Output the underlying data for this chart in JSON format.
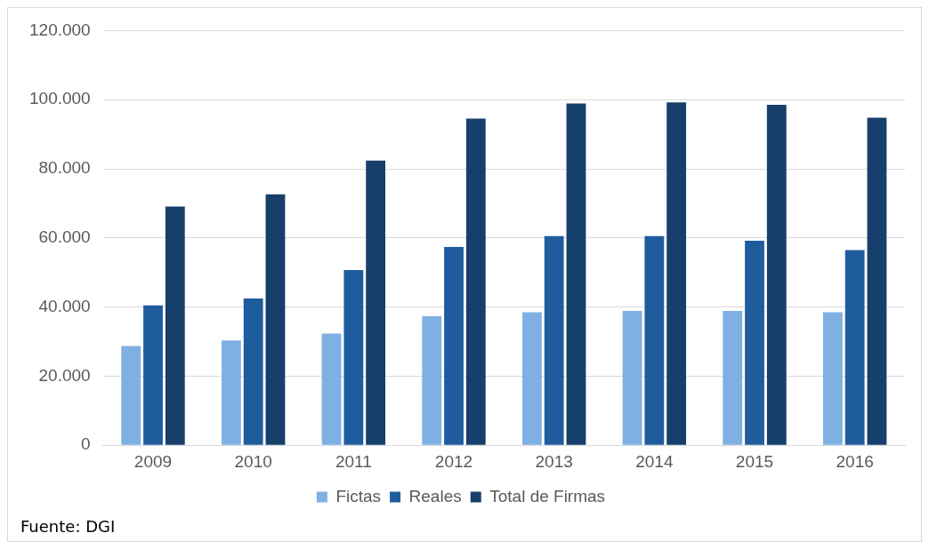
{
  "chart_data": {
    "type": "bar",
    "categories": [
      "2009",
      "2010",
      "2011",
      "2012",
      "2013",
      "2014",
      "2015",
      "2016"
    ],
    "series": [
      {
        "name": "Fictas",
        "color": "#7fb0e3",
        "values": [
          28700,
          30300,
          32300,
          37300,
          38500,
          38900,
          38900,
          38500
        ]
      },
      {
        "name": "Reales",
        "color": "#1f5c9e",
        "values": [
          40500,
          42500,
          50700,
          57400,
          60500,
          60500,
          59200,
          56500
        ]
      },
      {
        "name": "Total de Firmas",
        "color": "#173f6b",
        "values": [
          69100,
          72600,
          82400,
          94500,
          98900,
          99200,
          98500,
          94800
        ]
      }
    ],
    "ylim": [
      0,
      120000
    ],
    "yticks": [
      0,
      {
        "value": 20000,
        "label": "20.000"
      },
      {
        "value": 40000,
        "label": "40.000"
      },
      {
        "value": 60000,
        "label": "60.000"
      },
      {
        "value": 80000,
        "label": "80.000"
      },
      {
        "value": 100000,
        "label": "100.000"
      },
      {
        "value": 120000,
        "label": "120.000"
      }
    ],
    "grid": "y",
    "legend": "bottom",
    "annotations": [
      "Fuente: DGI"
    ]
  }
}
